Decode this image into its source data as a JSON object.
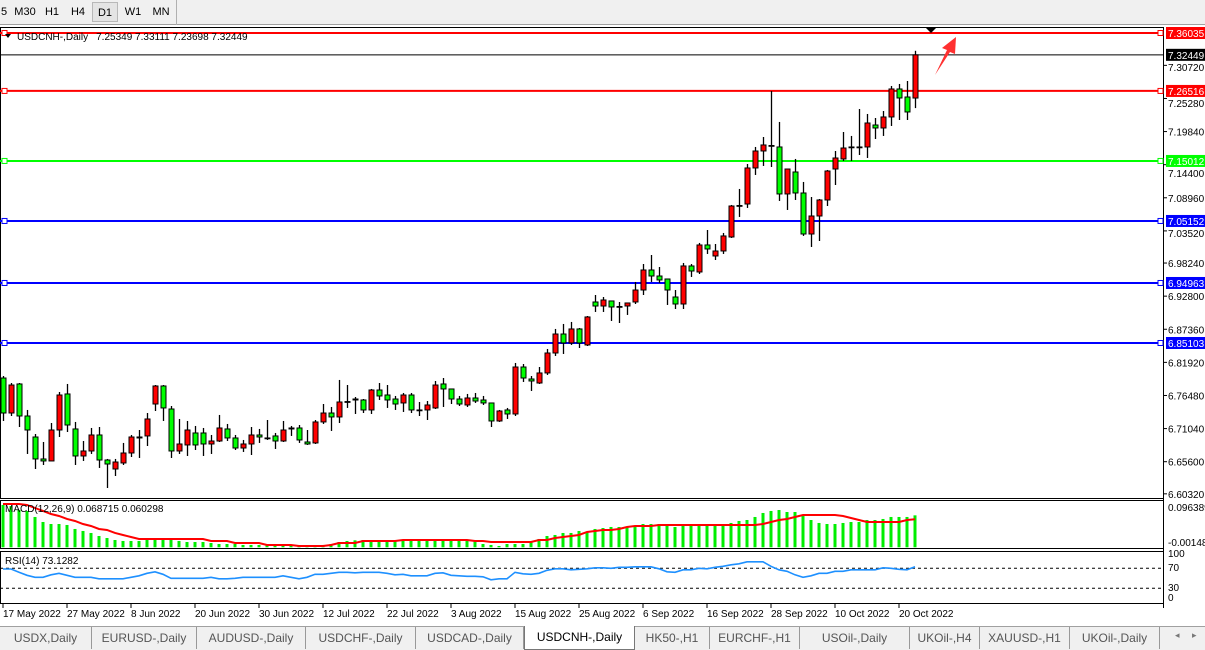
{
  "toolbar": {
    "timeframes": [
      {
        "label": "5",
        "active": false
      },
      {
        "label": "M30",
        "active": false
      },
      {
        "label": "H1",
        "active": false
      },
      {
        "label": "H4",
        "active": false
      },
      {
        "label": "D1",
        "active": true
      },
      {
        "label": "W1",
        "active": false
      },
      {
        "label": "MN",
        "active": false
      }
    ]
  },
  "tabs": {
    "items": [
      {
        "label": "USDX,Daily",
        "active": false
      },
      {
        "label": "EURUSD-,Daily",
        "active": false
      },
      {
        "label": "AUDUSD-,Daily",
        "active": false
      },
      {
        "label": "USDCHF-,Daily",
        "active": false
      },
      {
        "label": "USDCAD-,Daily",
        "active": false
      },
      {
        "label": "USDCNH-,Daily",
        "active": true
      },
      {
        "label": "HK50-,H1",
        "active": false
      },
      {
        "label": "EURCHF-,H1",
        "active": false
      },
      {
        "label": "USOil-,Daily",
        "active": false
      },
      {
        "label": "UKOil-,H4",
        "active": false
      },
      {
        "label": "XAUUSD-,H1",
        "active": false
      },
      {
        "label": "UKOil-,Daily",
        "active": false
      }
    ],
    "scroll_left_icon": "◂",
    "scroll_right_icon": "▸"
  },
  "colors": {
    "bull_body": "#ff0000",
    "bear_body": "#00ff00",
    "outline": "#000000",
    "macd_hist": "#00ee00",
    "macd_signal": "#ff0000",
    "rsi_line": "#1e90ff"
  },
  "chart_data": {
    "type": "candlestick",
    "symbol_label": "USDCNH-,Daily",
    "ohlc_label": "7.25349 7.33111 7.23698 7.32449",
    "ylim": [
      6.598,
      7.3702
    ],
    "y_ticks": [
      "7.30720",
      "7.25280",
      "7.19840",
      "7.14400",
      "7.08960",
      "7.03520",
      "6.98240",
      "6.92800",
      "6.87360",
      "6.81920",
      "6.76480",
      "6.71040",
      "6.65600",
      "6.60320"
    ],
    "x_labels": [
      {
        "bar": 0,
        "label": "17 May 2022"
      },
      {
        "bar": 8,
        "label": "27 May 2022"
      },
      {
        "bar": 16,
        "label": "8 Jun 2022"
      },
      {
        "bar": 24,
        "label": "20 Jun 2022"
      },
      {
        "bar": 32,
        "label": "30 Jun 2022"
      },
      {
        "bar": 40,
        "label": "12 Jul 2022"
      },
      {
        "bar": 48,
        "label": "22 Jul 2022"
      },
      {
        "bar": 56,
        "label": "3 Aug 2022"
      },
      {
        "bar": 64,
        "label": "15 Aug 2022"
      },
      {
        "bar": 72,
        "label": "25 Aug 2022"
      },
      {
        "bar": 80,
        "label": "6 Sep 2022"
      },
      {
        "bar": 88,
        "label": "16 Sep 2022"
      },
      {
        "bar": 96,
        "label": "28 Sep 2022"
      },
      {
        "bar": 104,
        "label": "10 Oct 2022"
      },
      {
        "bar": 112,
        "label": "20 Oct 2022"
      }
    ],
    "current_price": {
      "value": 7.32449,
      "label": "7.32449",
      "color": "#000000"
    },
    "hlines": [
      {
        "value": 7.36035,
        "label": "7.36035",
        "color": "#ff0000"
      },
      {
        "value": 7.26516,
        "label": "7.26516",
        "color": "#ff0000"
      },
      {
        "value": 7.15012,
        "label": "7.15012",
        "color": "#00ff00"
      },
      {
        "value": 7.05152,
        "label": "7.05152",
        "color": "#0000ff"
      },
      {
        "value": 6.94963,
        "label": "6.94963",
        "color": "#0000ff"
      },
      {
        "value": 6.85103,
        "label": "6.85103",
        "color": "#0000ff"
      }
    ],
    "candles_ohlc": [
      [
        6.7935,
        6.7968,
        6.7229,
        6.736
      ],
      [
        6.736,
        6.7853,
        6.7311,
        6.782
      ],
      [
        6.7837,
        6.7853,
        6.713,
        6.7311
      ],
      [
        6.7311,
        6.741,
        6.6687,
        6.7081
      ],
      [
        6.6966,
        6.7015,
        6.644,
        6.6605
      ],
      [
        6.6605,
        6.6884,
        6.6506,
        6.6572
      ],
      [
        6.6572,
        6.7196,
        6.6572,
        6.7081
      ],
      [
        6.7081,
        6.7705,
        6.6966,
        6.7656
      ],
      [
        6.7673,
        6.7837,
        6.7048,
        6.7163
      ],
      [
        6.7098,
        6.7213,
        6.6506,
        6.6654
      ],
      [
        6.6654,
        6.69,
        6.6572,
        6.6736
      ],
      [
        6.6736,
        6.7114,
        6.6687,
        6.6999
      ],
      [
        6.6999,
        6.713,
        6.6457,
        6.6588
      ],
      [
        6.6588,
        6.6605,
        6.6128,
        6.6522
      ],
      [
        6.644,
        6.6605,
        6.6325,
        6.6555
      ],
      [
        6.6539,
        6.6868,
        6.6506,
        6.6703
      ],
      [
        6.6703,
        6.6999,
        6.6637,
        6.6966
      ],
      [
        6.6966,
        6.7081,
        6.6621,
        6.695
      ],
      [
        6.6983,
        6.736,
        6.6818,
        6.7262
      ],
      [
        6.7508,
        6.782,
        6.7393,
        6.7804
      ],
      [
        6.7804,
        6.782,
        6.7229,
        6.7443
      ],
      [
        6.7426,
        6.7475,
        6.6621,
        6.6736
      ],
      [
        6.6736,
        6.7262,
        6.6687,
        6.6851
      ],
      [
        6.6835,
        6.7229,
        6.6654,
        6.7081
      ],
      [
        6.7032,
        6.7147,
        6.6752,
        6.6835
      ],
      [
        6.7032,
        6.7114,
        6.6654,
        6.6851
      ],
      [
        6.6851,
        6.6999,
        6.6687,
        6.69
      ],
      [
        6.69,
        6.7328,
        6.6884,
        6.7114
      ],
      [
        6.7098,
        6.718,
        6.69,
        6.695
      ],
      [
        6.695,
        6.6999,
        6.6752,
        6.6785
      ],
      [
        6.6785,
        6.6917,
        6.672,
        6.6851
      ],
      [
        6.6851,
        6.713,
        6.667,
        6.6999
      ],
      [
        6.6999,
        6.7098,
        6.6868,
        6.6966
      ],
      [
        6.695,
        6.7245,
        6.6917,
        6.694
      ],
      [
        6.6983,
        6.7032,
        6.6769,
        6.69
      ],
      [
        6.69,
        6.7229,
        6.6884,
        6.7081
      ],
      [
        6.7098,
        6.7147,
        6.6983,
        6.7114
      ],
      [
        6.7114,
        6.7163,
        6.6868,
        6.6917
      ],
      [
        6.6884,
        6.7081,
        6.6835,
        6.6851
      ],
      [
        6.6868,
        6.7245,
        6.6851,
        6.7213
      ],
      [
        6.7213,
        6.7508,
        6.718,
        6.736
      ],
      [
        6.736,
        6.7459,
        6.7065,
        6.7295
      ],
      [
        6.7295,
        6.7903,
        6.7196,
        6.7541
      ],
      [
        6.7541,
        6.782,
        6.7443,
        6.7548
      ],
      [
        6.7574,
        6.7623,
        6.7344,
        6.759
      ],
      [
        6.7574,
        6.759,
        6.736,
        6.741
      ],
      [
        6.741,
        6.7755,
        6.7344,
        6.7738
      ],
      [
        6.7738,
        6.7853,
        6.7574,
        6.764
      ],
      [
        6.7656,
        6.782,
        6.7443,
        6.7574
      ],
      [
        6.759,
        6.764,
        6.741,
        6.7508
      ],
      [
        6.7525,
        6.7689,
        6.7377,
        6.7656
      ],
      [
        6.7656,
        6.7689,
        6.736,
        6.741
      ],
      [
        6.741,
        6.7541,
        6.7311,
        6.7402
      ],
      [
        6.741,
        6.7557,
        6.7245,
        6.7492
      ],
      [
        6.7443,
        6.7886,
        6.7426,
        6.782
      ],
      [
        6.7837,
        6.7935,
        6.7459,
        6.7755
      ],
      [
        6.7755,
        6.7755,
        6.7508,
        6.759
      ],
      [
        6.759,
        6.764,
        6.7475,
        6.7508
      ],
      [
        6.7492,
        6.7673,
        6.7459,
        6.7607
      ],
      [
        6.7607,
        6.7689,
        6.7525,
        6.7557
      ],
      [
        6.7574,
        6.764,
        6.7492,
        6.7525
      ],
      [
        6.7525,
        6.7525,
        6.713,
        6.7229
      ],
      [
        6.7229,
        6.741,
        6.7213,
        6.7393
      ],
      [
        6.741,
        6.7443,
        6.7262,
        6.7344
      ],
      [
        6.7344,
        6.8182,
        6.7311,
        6.8116
      ],
      [
        6.8116,
        6.8165,
        6.787,
        6.7935
      ],
      [
        6.7919,
        6.7968,
        6.7722,
        6.7886
      ],
      [
        6.7853,
        6.8116,
        6.7837,
        6.8018
      ],
      [
        6.8018,
        6.8412,
        6.7985,
        6.8346
      ],
      [
        6.8346,
        6.8741,
        6.8297,
        6.8658
      ],
      [
        6.8658,
        6.8823,
        6.833,
        6.8511
      ],
      [
        6.8511,
        6.8856,
        6.8478,
        6.8741
      ],
      [
        6.8741,
        6.8757,
        6.8428,
        6.8511
      ],
      [
        6.8478,
        6.8954,
        6.8461,
        6.8938
      ],
      [
        6.9184,
        6.9299,
        6.902,
        6.9118
      ],
      [
        6.9118,
        6.9266,
        6.902,
        6.9217
      ],
      [
        6.9201,
        6.9201,
        6.8872,
        6.9102
      ],
      [
        6.9102,
        6.9184,
        6.8839,
        6.911
      ],
      [
        6.9118,
        6.9168,
        6.8971,
        6.9168
      ],
      [
        6.9184,
        6.9513,
        6.9151,
        6.9381
      ],
      [
        6.9381,
        6.9808,
        6.9299,
        6.971
      ],
      [
        6.971,
        6.9956,
        6.9513,
        6.9611
      ],
      [
        6.9611,
        6.9759,
        6.9496,
        6.9546
      ],
      [
        6.9562,
        6.9562,
        6.9135,
        6.9381
      ],
      [
        6.9266,
        6.9381,
        6.9069,
        6.9151
      ],
      [
        6.9151,
        6.9825,
        6.9069,
        6.9776
      ],
      [
        6.9776,
        6.9808,
        6.9595,
        6.9693
      ],
      [
        6.9677,
        7.0154,
        6.9644,
        7.0121
      ],
      [
        7.0121,
        7.0367,
        6.9973,
        7.0055
      ],
      [
        6.994,
        7.0137,
        6.9874,
        7.0022
      ],
      [
        7.0022,
        7.0318,
        6.9973,
        7.0269
      ],
      [
        7.0252,
        7.0778,
        7.0236,
        7.0761
      ],
      [
        7.0761,
        7.1041,
        7.0581,
        7.0769
      ],
      [
        7.0794,
        7.1451,
        7.0729,
        7.1386
      ],
      [
        7.1386,
        7.1731,
        7.1271,
        7.1665
      ],
      [
        7.1665,
        7.1895,
        7.1419,
        7.1764
      ],
      [
        7.1747,
        7.2651,
        7.1402,
        7.1755
      ],
      [
        7.1731,
        7.2142,
        7.0844,
        7.0959
      ],
      [
        7.0959,
        7.1369,
        7.0696,
        7.1369
      ],
      [
        7.132,
        7.1534,
        7.086,
        7.0975
      ],
      [
        7.0975,
        7.1156,
        7.0269,
        7.0301
      ],
      [
        7.0301,
        7.0909,
        7.0088,
        7.0597
      ],
      [
        7.0597,
        7.0876,
        7.0186,
        7.086
      ],
      [
        7.086,
        7.1353,
        7.0761,
        7.1336
      ],
      [
        7.1369,
        7.1665,
        7.1106,
        7.155
      ],
      [
        7.1534,
        7.1977,
        7.1501,
        7.1714
      ],
      [
        7.1731,
        7.1912,
        7.1501,
        7.1725
      ],
      [
        7.1725,
        7.2355,
        7.1599,
        7.1731
      ],
      [
        7.1731,
        7.2273,
        7.155,
        7.2125
      ],
      [
        7.2092,
        7.2207,
        7.1862,
        7.2043
      ],
      [
        7.2043,
        7.2322,
        7.1912,
        7.2224
      ],
      [
        7.2224,
        7.2733,
        7.2076,
        7.2684
      ],
      [
        7.2684,
        7.2766,
        7.2174,
        7.2536
      ],
      [
        7.2552,
        7.2815,
        7.2174,
        7.2306
      ],
      [
        7.25349,
        7.33111,
        7.23698,
        7.32449
      ]
    ],
    "macd": {
      "label": "MACD(12,26,9) 0.068715 0.060298",
      "ylim": [
        -0.00148,
        0.096389
      ],
      "axis_labels": [
        "0.096389",
        "-0.00148"
      ],
      "histogram": [
        0.091,
        0.0888,
        0.0802,
        0.0781,
        0.0652,
        0.0544,
        0.0501,
        0.0501,
        0.048,
        0.0394,
        0.0351,
        0.0308,
        0.0243,
        0.02,
        0.0157,
        0.0136,
        0.0136,
        0.0136,
        0.0157,
        0.02,
        0.02,
        0.0157,
        0.0136,
        0.0114,
        0.0114,
        0.0114,
        0.0093,
        0.0071,
        0.0071,
        0.0071,
        0.005,
        0.005,
        0.005,
        0.005,
        0.005,
        0.005,
        0.004,
        0.0028,
        0.0028,
        0.0028,
        0.005,
        0.0071,
        0.0114,
        0.0136,
        0.015,
        0.0157,
        0.0157,
        0.0157,
        0.015,
        0.0136,
        0.0136,
        0.0136,
        0.0136,
        0.0136,
        0.0136,
        0.0136,
        0.0136,
        0.0136,
        0.0136,
        0.013,
        0.0071,
        0.005,
        0.0028,
        0.0071,
        0.0071,
        0.0071,
        0.0136,
        0.0179,
        0.0243,
        0.0265,
        0.0308,
        0.0308,
        0.0351,
        0.0329,
        0.0394,
        0.0415,
        0.0437,
        0.0437,
        0.0437,
        0.0458,
        0.0501,
        0.0501,
        0.0501,
        0.0458,
        0.0437,
        0.048,
        0.048,
        0.048,
        0.048,
        0.048,
        0.048,
        0.0523,
        0.0566,
        0.0587,
        0.0652,
        0.0738,
        0.0781,
        0.0802,
        0.0759,
        0.0759,
        0.0695,
        0.0587,
        0.0523,
        0.0501,
        0.0501,
        0.0523,
        0.0544,
        0.0544,
        0.0587,
        0.0587,
        0.0609,
        0.0652,
        0.0652,
        0.0652,
        0.068715
      ],
      "signal": [
        0.0931,
        0.0931,
        0.0931,
        0.091,
        0.0845,
        0.0781,
        0.0716,
        0.0673,
        0.0609,
        0.0566,
        0.0501,
        0.0458,
        0.0394,
        0.0372,
        0.0308,
        0.0265,
        0.0222,
        0.0179,
        0.0179,
        0.0179,
        0.0179,
        0.0179,
        0.0179,
        0.0179,
        0.0179,
        0.0179,
        0.0136,
        0.0136,
        0.0136,
        0.0093,
        0.0093,
        0.0093,
        0.0093,
        0.005,
        0.005,
        0.005,
        0.005,
        0.0028,
        0.0028,
        0.0028,
        0.0028,
        0.005,
        0.0093,
        0.0093,
        0.0093,
        0.0136,
        0.0136,
        0.0136,
        0.0136,
        0.0136,
        0.0157,
        0.0157,
        0.0157,
        0.0157,
        0.0157,
        0.0157,
        0.0157,
        0.0157,
        0.0157,
        0.0136,
        0.0136,
        0.0114,
        0.0114,
        0.0114,
        0.0114,
        0.0114,
        0.0114,
        0.0157,
        0.0157,
        0.02,
        0.0222,
        0.0243,
        0.0265,
        0.0329,
        0.0351,
        0.0372,
        0.0372,
        0.0394,
        0.0437,
        0.0458,
        0.0458,
        0.0458,
        0.048,
        0.048,
        0.048,
        0.048,
        0.048,
        0.048,
        0.048,
        0.048,
        0.048,
        0.048,
        0.048,
        0.048,
        0.048,
        0.0501,
        0.0544,
        0.0587,
        0.0609,
        0.0652,
        0.0695,
        0.0695,
        0.0695,
        0.0695,
        0.0695,
        0.0673,
        0.063,
        0.0587,
        0.0544,
        0.0544,
        0.0544,
        0.0544,
        0.0544,
        0.0587,
        0.060298
      ]
    },
    "rsi": {
      "label": "RSI(14) 73.1282",
      "ylim": [
        0,
        100
      ],
      "levels": [
        70,
        30
      ],
      "axis_labels": [
        "100",
        "70",
        "30",
        "0"
      ],
      "values": [
        68.6,
        68.6,
        62,
        56,
        52,
        52,
        57,
        60,
        56,
        52,
        52,
        52,
        49,
        49,
        49,
        49,
        52,
        55,
        60,
        63,
        58,
        50,
        50,
        50,
        50,
        50,
        52,
        49,
        49,
        50,
        52,
        52,
        52,
        52,
        52,
        55,
        52,
        49,
        52,
        58,
        58,
        60,
        62,
        62,
        61,
        62,
        62,
        62,
        60,
        57,
        58,
        55,
        55,
        55,
        60,
        61,
        56,
        55,
        54,
        54,
        53,
        47,
        49,
        49,
        62,
        59,
        58,
        60,
        66,
        69,
        69,
        67,
        68,
        69,
        71,
        71,
        70,
        72,
        72,
        73,
        73,
        73,
        69,
        63,
        62,
        67,
        67,
        70,
        69,
        72,
        74,
        77,
        79,
        83,
        83,
        83,
        74,
        67,
        64,
        57,
        52,
        55,
        60,
        60,
        64,
        64,
        67,
        67,
        67,
        67,
        71,
        70,
        68,
        67,
        73.1282
      ]
    }
  }
}
